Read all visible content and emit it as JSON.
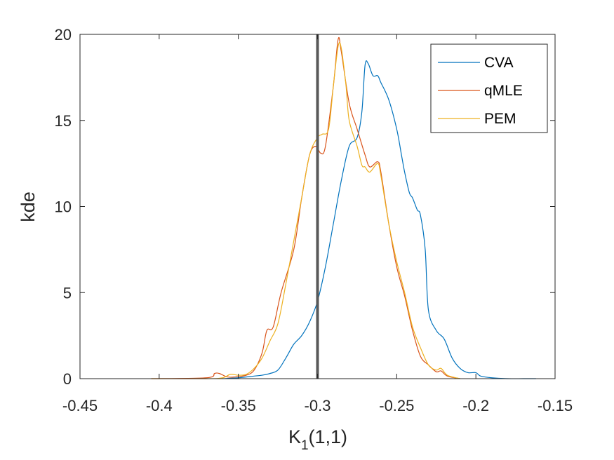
{
  "chart_data": {
    "type": "line",
    "title": "",
    "xlabel": "K",
    "xlabel_subscript": "1",
    "xlabel_suffix": "(1,1)",
    "ylabel": "kde",
    "xlim": [
      -0.45,
      -0.15
    ],
    "ylim": [
      0,
      20
    ],
    "xticks": [
      -0.45,
      -0.4,
      -0.35,
      -0.3,
      -0.25,
      -0.2,
      -0.15
    ],
    "xtick_labels": [
      "-0.45",
      "-0.4",
      "-0.35",
      "-0.3",
      "-0.25",
      "-0.2",
      "-0.15"
    ],
    "yticks": [
      0,
      5,
      10,
      15,
      20
    ],
    "ytick_labels": [
      "0",
      "5",
      "10",
      "15",
      "20"
    ],
    "reference_line": {
      "x": -0.3,
      "color": "#595959"
    },
    "legend_position": "top-right",
    "series": [
      {
        "name": "CVA",
        "color": "#0072BD",
        "x": [
          -0.36,
          -0.35,
          -0.34,
          -0.335,
          -0.33,
          -0.325,
          -0.32,
          -0.315,
          -0.31,
          -0.305,
          -0.3,
          -0.295,
          -0.29,
          -0.285,
          -0.28,
          -0.275,
          -0.272,
          -0.27,
          -0.268,
          -0.265,
          -0.262,
          -0.26,
          -0.255,
          -0.25,
          -0.247,
          -0.245,
          -0.242,
          -0.24,
          -0.237,
          -0.235,
          -0.232,
          -0.23,
          -0.225,
          -0.22,
          -0.215,
          -0.21,
          -0.205,
          -0.2,
          -0.197,
          -0.19,
          -0.18,
          -0.17,
          -0.162
        ],
        "values": [
          0.0,
          0.05,
          0.15,
          0.2,
          0.3,
          0.5,
          1.2,
          2.0,
          2.5,
          3.3,
          4.5,
          6.5,
          9.0,
          11.5,
          13.5,
          14.0,
          15.5,
          18.2,
          18.3,
          17.6,
          17.6,
          17.2,
          16.2,
          14.5,
          13.0,
          12.0,
          10.8,
          10.5,
          9.8,
          9.5,
          7.5,
          4.0,
          2.8,
          2.3,
          1.2,
          0.6,
          0.35,
          0.35,
          0.15,
          0.05,
          0.0,
          0.0,
          0.0
        ]
      },
      {
        "name": "qMLE",
        "color": "#D95319",
        "x": [
          -0.405,
          -0.37,
          -0.365,
          -0.362,
          -0.357,
          -0.352,
          -0.345,
          -0.34,
          -0.335,
          -0.332,
          -0.328,
          -0.323,
          -0.315,
          -0.31,
          -0.305,
          -0.301,
          -0.298,
          -0.295,
          -0.29,
          -0.287,
          -0.285,
          -0.28,
          -0.275,
          -0.27,
          -0.267,
          -0.262,
          -0.26,
          -0.255,
          -0.25,
          -0.245,
          -0.24,
          -0.235,
          -0.23,
          -0.225,
          -0.222,
          -0.218,
          -0.21
        ],
        "values": [
          0.0,
          0.05,
          0.3,
          0.3,
          0.1,
          0.1,
          0.2,
          0.5,
          1.5,
          2.8,
          3.0,
          5.0,
          7.5,
          10.5,
          13.0,
          13.5,
          13.1,
          13.5,
          17.0,
          19.7,
          19.0,
          16.0,
          14.5,
          13.0,
          12.3,
          12.6,
          12.0,
          9.0,
          6.5,
          4.8,
          2.8,
          1.3,
          0.8,
          0.4,
          0.45,
          0.15,
          0.0
        ]
      },
      {
        "name": "PEM",
        "color": "#EDB120",
        "x": [
          -0.405,
          -0.37,
          -0.36,
          -0.355,
          -0.35,
          -0.345,
          -0.34,
          -0.335,
          -0.33,
          -0.325,
          -0.32,
          -0.315,
          -0.31,
          -0.305,
          -0.3,
          -0.297,
          -0.293,
          -0.29,
          -0.287,
          -0.285,
          -0.282,
          -0.28,
          -0.275,
          -0.272,
          -0.27,
          -0.267,
          -0.262,
          -0.26,
          -0.255,
          -0.25,
          -0.245,
          -0.24,
          -0.235,
          -0.23,
          -0.225,
          -0.222,
          -0.218,
          -0.21
        ],
        "values": [
          0.0,
          0.0,
          0.05,
          0.25,
          0.2,
          0.25,
          0.6,
          1.2,
          2.2,
          3.2,
          5.5,
          8.0,
          10.5,
          13.0,
          14.0,
          14.2,
          14.5,
          17.0,
          19.3,
          19.2,
          17.0,
          15.0,
          13.5,
          12.4,
          12.3,
          12.0,
          12.5,
          11.8,
          9.0,
          6.8,
          5.0,
          3.0,
          1.8,
          0.8,
          0.5,
          0.6,
          0.2,
          0.0
        ]
      }
    ]
  }
}
